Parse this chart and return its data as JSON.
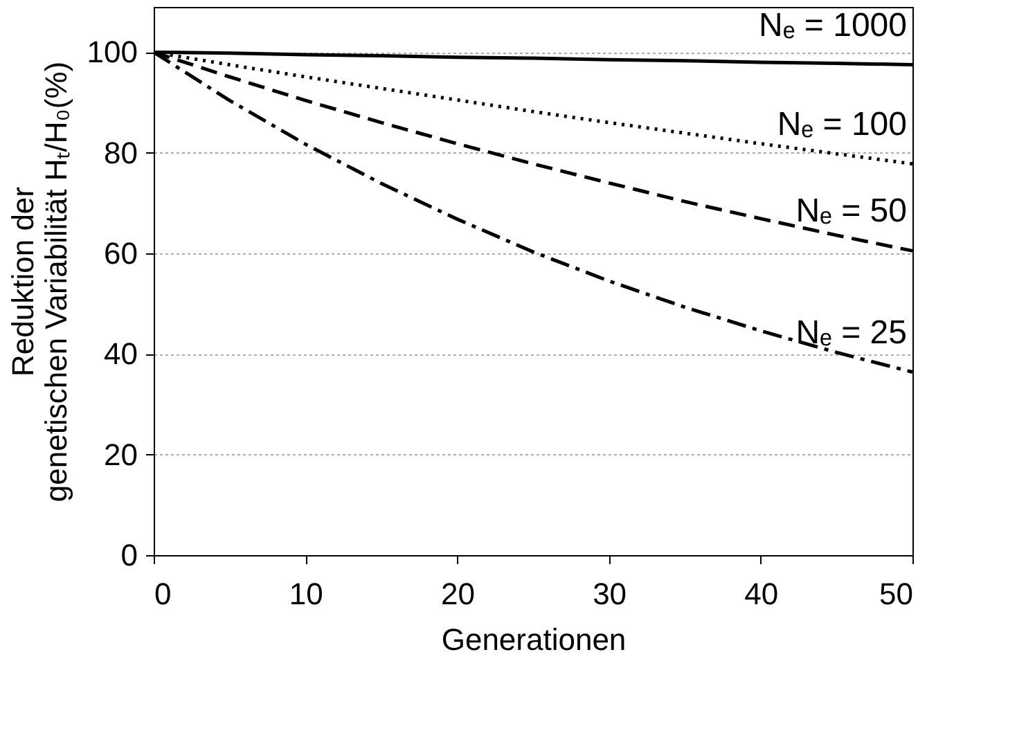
{
  "chart_data": {
    "type": "line",
    "xlabel": "Generationen",
    "ylabel": "Reduktion der\ngenetischen Variabilität Hₜ/H₀(%)",
    "x": [
      0,
      5,
      10,
      15,
      20,
      25,
      30,
      35,
      40,
      45,
      50
    ],
    "series": [
      {
        "name": "Nₑ = 1000",
        "color": "#000000",
        "line_style": "solid",
        "values": [
          100,
          99.8,
          99.5,
          99.3,
          99.0,
          98.8,
          98.5,
          98.3,
          98.0,
          97.8,
          97.5
        ]
      },
      {
        "name": "Nₑ = 100",
        "color": "#000000",
        "line_style": "dotted",
        "values": [
          100,
          97.5,
          95.1,
          92.8,
          90.5,
          88.2,
          86.0,
          83.9,
          81.8,
          79.8,
          77.8
        ]
      },
      {
        "name": "Nₑ = 50",
        "color": "#000000",
        "line_style": "dashed",
        "values": [
          100,
          95.1,
          90.4,
          86.0,
          81.8,
          77.8,
          74.0,
          70.3,
          66.9,
          63.6,
          60.5
        ]
      },
      {
        "name": "Nₑ = 25",
        "color": "#000000",
        "line_style": "dashdot",
        "values": [
          100,
          90.4,
          81.7,
          73.9,
          66.8,
          60.3,
          54.5,
          49.3,
          44.6,
          40.3,
          36.4
        ]
      }
    ],
    "xlim": [
      0,
      50
    ],
    "xticks": [
      0,
      10,
      20,
      30,
      40,
      50
    ],
    "ylim": [
      0,
      109
    ],
    "yticks": [
      0,
      20,
      40,
      60,
      80,
      100
    ],
    "grid": "y",
    "legend": false,
    "marker": "none"
  }
}
